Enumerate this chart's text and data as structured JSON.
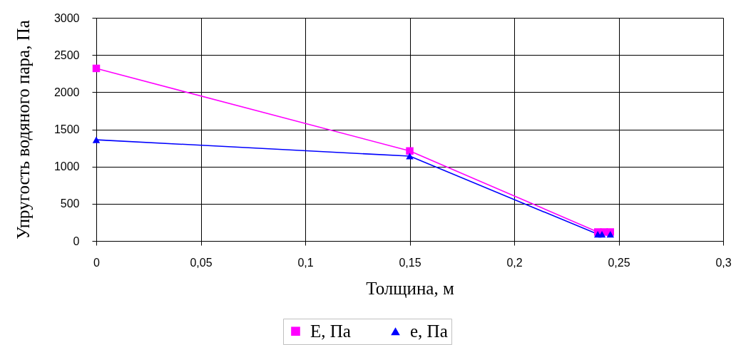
{
  "chart_data": {
    "type": "line",
    "xlabel": "Толщина, м",
    "ylabel": "Упругость водяного пара, Па",
    "xlim": [
      0,
      0.3
    ],
    "ylim": [
      0,
      3000
    ],
    "xticks": [
      0,
      {
        "value": 0.05,
        "label": "0,05"
      },
      {
        "value": 0.1,
        "label": "0,1"
      },
      {
        "value": 0.15,
        "label": "0,15"
      },
      {
        "value": 0.2,
        "label": "0,2"
      },
      {
        "value": 0.25,
        "label": "0,25"
      },
      {
        "value": 0.3,
        "label": "0,3"
      }
    ],
    "yticks": [
      0,
      500,
      1000,
      1500,
      2000,
      2500,
      3000
    ],
    "grid": true,
    "legend": "bottom",
    "series": [
      {
        "name": "E, Па",
        "color": "#ff00ff",
        "marker": "square",
        "x": [
          0,
          0.15,
          0.24,
          0.243,
          0.246
        ],
        "values": [
          2320,
          1210,
          120,
          120,
          120
        ]
      },
      {
        "name": "e, Па",
        "color": "#0000ff",
        "marker": "triangle",
        "x": [
          0,
          0.15,
          0.24,
          0.242,
          0.246
        ],
        "values": [
          1360,
          1140,
          90,
          90,
          90
        ]
      }
    ]
  }
}
